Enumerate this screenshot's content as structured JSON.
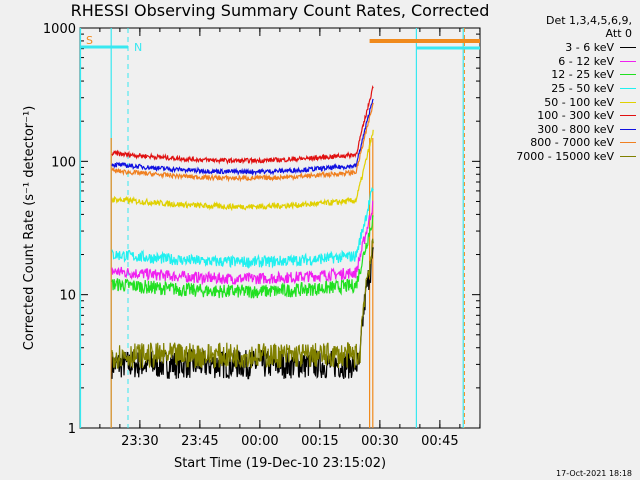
{
  "chart_data": {
    "type": "line",
    "title": "RHESSI Observing Summary Count Rates, Corrected",
    "xlabel": "Start Time (19-Dec-10 23:15:02)",
    "ylabel": "Corrected Count Rate (s⁻¹ detector⁻¹)",
    "y_scale": "log",
    "ylim": [
      1,
      1000
    ],
    "xlim_minutes_after_start": [
      0,
      100
    ],
    "x_ticks": [
      {
        "label": "23:30",
        "minute": 14.97
      },
      {
        "label": "23:45",
        "minute": 29.97
      },
      {
        "label": "00:00",
        "minute": 44.97
      },
      {
        "label": "00:15",
        "minute": 59.97
      },
      {
        "label": "00:30",
        "minute": 74.97
      },
      {
        "label": "00:45",
        "minute": 89.97
      }
    ],
    "y_ticks": [
      "1",
      "10",
      "100",
      "1000"
    ],
    "detector_info": [
      "Det 1,3,4,5,6,9,",
      "Att 0"
    ],
    "flags": [
      {
        "label": "S",
        "color": "#f08a1c"
      },
      {
        "label": "N",
        "color": "#38e8f0"
      }
    ],
    "series": [
      {
        "name": "3 - 6 keV",
        "color": "#000000",
        "approx_level": 3
      },
      {
        "name": "6 - 12 keV",
        "color": "#f020f0",
        "approx_level": 15
      },
      {
        "name": "12 - 25 keV",
        "color": "#20e020",
        "approx_level": 12
      },
      {
        "name": "25 - 50 keV",
        "color": "#20f0f0",
        "approx_level": 20
      },
      {
        "name": "50 - 100 keV",
        "color": "#e0d000",
        "approx_level": 52
      },
      {
        "name": "100 - 300 keV",
        "color": "#e01010",
        "approx_level": 115
      },
      {
        "name": "300 - 800 keV",
        "color": "#1010e0",
        "approx_level": 95
      },
      {
        "name": "800 - 7000 keV",
        "color": "#f08020",
        "approx_level": 85
      },
      {
        "name": "7000 - 15000 keV",
        "color": "#808000",
        "approx_level": 3.5
      }
    ],
    "timestamp": "17-Oct-2021 18:18"
  }
}
